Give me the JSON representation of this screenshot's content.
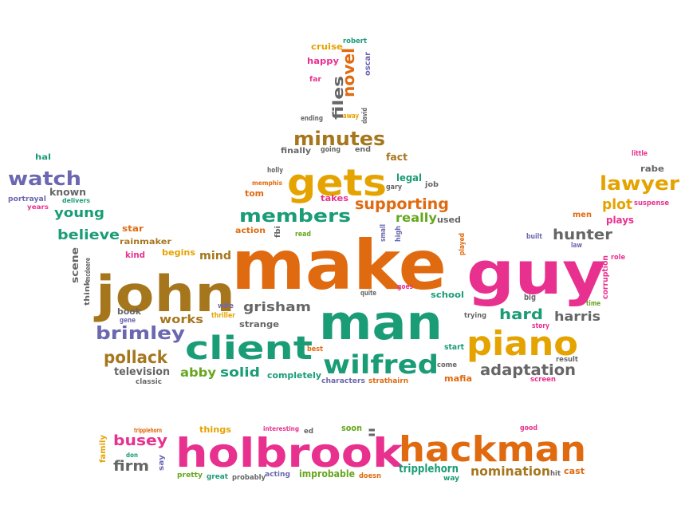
{
  "colors": {
    "orange": "#e06a10",
    "pink": "#e8318f",
    "gold": "#e5a300",
    "teal": "#1a9c76",
    "purple": "#6b67b0",
    "green": "#66a61e",
    "brown": "#a6761d",
    "gray": "#666666"
  },
  "words": [
    {
      "text": "make",
      "color": "orange"
    },
    {
      "text": "guy",
      "color": "pink"
    },
    {
      "text": "john",
      "color": "brown"
    },
    {
      "text": "man",
      "color": "teal"
    },
    {
      "text": "holbrook",
      "color": "pink"
    },
    {
      "text": "hackman",
      "color": "orange"
    },
    {
      "text": "client",
      "color": "teal"
    },
    {
      "text": "piano",
      "color": "gold"
    },
    {
      "text": "gets",
      "color": "gold"
    },
    {
      "text": "wilfred",
      "color": "teal"
    },
    {
      "text": "minutes",
      "color": "brown"
    },
    {
      "text": "members",
      "color": "teal"
    },
    {
      "text": "lawyer",
      "color": "gold"
    },
    {
      "text": "watch",
      "color": "purple"
    },
    {
      "text": "brimley",
      "color": "purple"
    },
    {
      "text": "pollack",
      "color": "brown"
    },
    {
      "text": "adaptation",
      "color": "gray"
    },
    {
      "text": "supporting",
      "color": "orange"
    },
    {
      "text": "hunter",
      "color": "gray"
    },
    {
      "text": "grisham",
      "color": "gray"
    },
    {
      "text": "busey",
      "color": "pink"
    },
    {
      "text": "firm",
      "color": "gray"
    },
    {
      "text": "nomination",
      "color": "brown"
    },
    {
      "text": "tripplehorn",
      "color": "teal"
    },
    {
      "text": "believe",
      "color": "teal"
    },
    {
      "text": "young",
      "color": "teal"
    },
    {
      "text": "novel",
      "color": "orange"
    },
    {
      "text": "files",
      "color": "gray"
    },
    {
      "text": "plot",
      "color": "gold"
    },
    {
      "text": "hard",
      "color": "teal"
    },
    {
      "text": "harris",
      "color": "gray"
    },
    {
      "text": "works",
      "color": "brown"
    },
    {
      "text": "solid",
      "color": "teal"
    },
    {
      "text": "abby",
      "color": "green"
    },
    {
      "text": "really",
      "color": "green"
    },
    {
      "text": "mind",
      "color": "brown"
    },
    {
      "text": "television",
      "color": "gray"
    },
    {
      "text": "improbable",
      "color": "green"
    },
    {
      "text": "scene",
      "color": "gray"
    },
    {
      "text": "known",
      "color": "gray"
    },
    {
      "text": "plays",
      "color": "pink"
    },
    {
      "text": "strange",
      "color": "gray"
    },
    {
      "text": "completely",
      "color": "teal"
    },
    {
      "text": "legal",
      "color": "teal"
    },
    {
      "text": "fact",
      "color": "brown"
    },
    {
      "text": "tom",
      "color": "orange"
    },
    {
      "text": "cruise",
      "color": "gold"
    },
    {
      "text": "happy",
      "color": "pink"
    },
    {
      "text": "oscar",
      "color": "purple"
    },
    {
      "text": "robert",
      "color": "teal"
    },
    {
      "text": "rainmaker",
      "color": "brown"
    },
    {
      "text": "star",
      "color": "orange"
    },
    {
      "text": "kind",
      "color": "pink"
    },
    {
      "text": "begins",
      "color": "gold"
    },
    {
      "text": "book",
      "color": "gray"
    },
    {
      "text": "gene",
      "color": "purple"
    },
    {
      "text": "thriller",
      "color": "gold"
    },
    {
      "text": "wife",
      "color": "purple"
    },
    {
      "text": "school",
      "color": "teal"
    },
    {
      "text": "mafia",
      "color": "orange"
    },
    {
      "text": "big",
      "color": "gray"
    },
    {
      "text": "story",
      "color": "pink"
    },
    {
      "text": "start",
      "color": "teal"
    },
    {
      "text": "best",
      "color": "orange"
    },
    {
      "text": "characters",
      "color": "purple"
    },
    {
      "text": "strathairn",
      "color": "orange"
    },
    {
      "text": "classic",
      "color": "gray"
    },
    {
      "text": "rabe",
      "color": "gray"
    },
    {
      "text": "little",
      "color": "pink"
    },
    {
      "text": "suspense",
      "color": "pink"
    },
    {
      "text": "men",
      "color": "orange"
    },
    {
      "text": "built",
      "color": "purple"
    },
    {
      "text": "law",
      "color": "purple"
    },
    {
      "text": "role",
      "color": "pink"
    },
    {
      "text": "corruption",
      "color": "pink"
    },
    {
      "text": "time",
      "color": "green"
    },
    {
      "text": "result",
      "color": "gray"
    },
    {
      "text": "screen",
      "color": "pink"
    },
    {
      "text": "trying",
      "color": "gray"
    },
    {
      "text": "played",
      "color": "orange"
    },
    {
      "text": "used",
      "color": "gray"
    },
    {
      "text": "small",
      "color": "purple"
    },
    {
      "text": "high",
      "color": "purple"
    },
    {
      "text": "quite",
      "color": "gray"
    },
    {
      "text": "goes",
      "color": "pink"
    },
    {
      "text": "come",
      "color": "gray"
    },
    {
      "text": "away",
      "color": "gold"
    },
    {
      "text": "ending",
      "color": "gray"
    },
    {
      "text": "david",
      "color": "gray"
    },
    {
      "text": "far",
      "color": "pink"
    },
    {
      "text": "finally",
      "color": "gray"
    },
    {
      "text": "going",
      "color": "gray"
    },
    {
      "text": "end",
      "color": "gray"
    },
    {
      "text": "holly",
      "color": "gray"
    },
    {
      "text": "memphis",
      "color": "orange"
    },
    {
      "text": "gary",
      "color": "gray"
    },
    {
      "text": "job",
      "color": "gray"
    },
    {
      "text": "takes",
      "color": "pink"
    },
    {
      "text": "action",
      "color": "orange"
    },
    {
      "text": "read",
      "color": "green"
    },
    {
      "text": "fbi",
      "color": "gray"
    },
    {
      "text": "hal",
      "color": "teal"
    },
    {
      "text": "portrayal",
      "color": "purple"
    },
    {
      "text": "years",
      "color": "pink"
    },
    {
      "text": "delivers",
      "color": "teal"
    },
    {
      "text": "think",
      "color": "gray"
    },
    {
      "text": "mcdeere",
      "color": "gray"
    },
    {
      "text": "tripplehorn",
      "color": "orange"
    },
    {
      "text": "things",
      "color": "gold"
    },
    {
      "text": "interesting",
      "color": "pink"
    },
    {
      "text": "ed",
      "color": "gray"
    },
    {
      "text": "soon",
      "color": "green"
    },
    {
      "text": "ll",
      "color": "gray"
    },
    {
      "text": "good",
      "color": "pink"
    },
    {
      "text": "family",
      "color": "gold"
    },
    {
      "text": "don",
      "color": "teal"
    },
    {
      "text": "say",
      "color": "purple"
    },
    {
      "text": "pretty",
      "color": "green"
    },
    {
      "text": "great",
      "color": "teal"
    },
    {
      "text": "probably",
      "color": "gray"
    },
    {
      "text": "acting",
      "color": "purple"
    },
    {
      "text": "doesn",
      "color": "orange"
    },
    {
      "text": "way",
      "color": "teal"
    },
    {
      "text": "hit",
      "color": "gray"
    },
    {
      "text": "cast",
      "color": "orange"
    }
  ]
}
